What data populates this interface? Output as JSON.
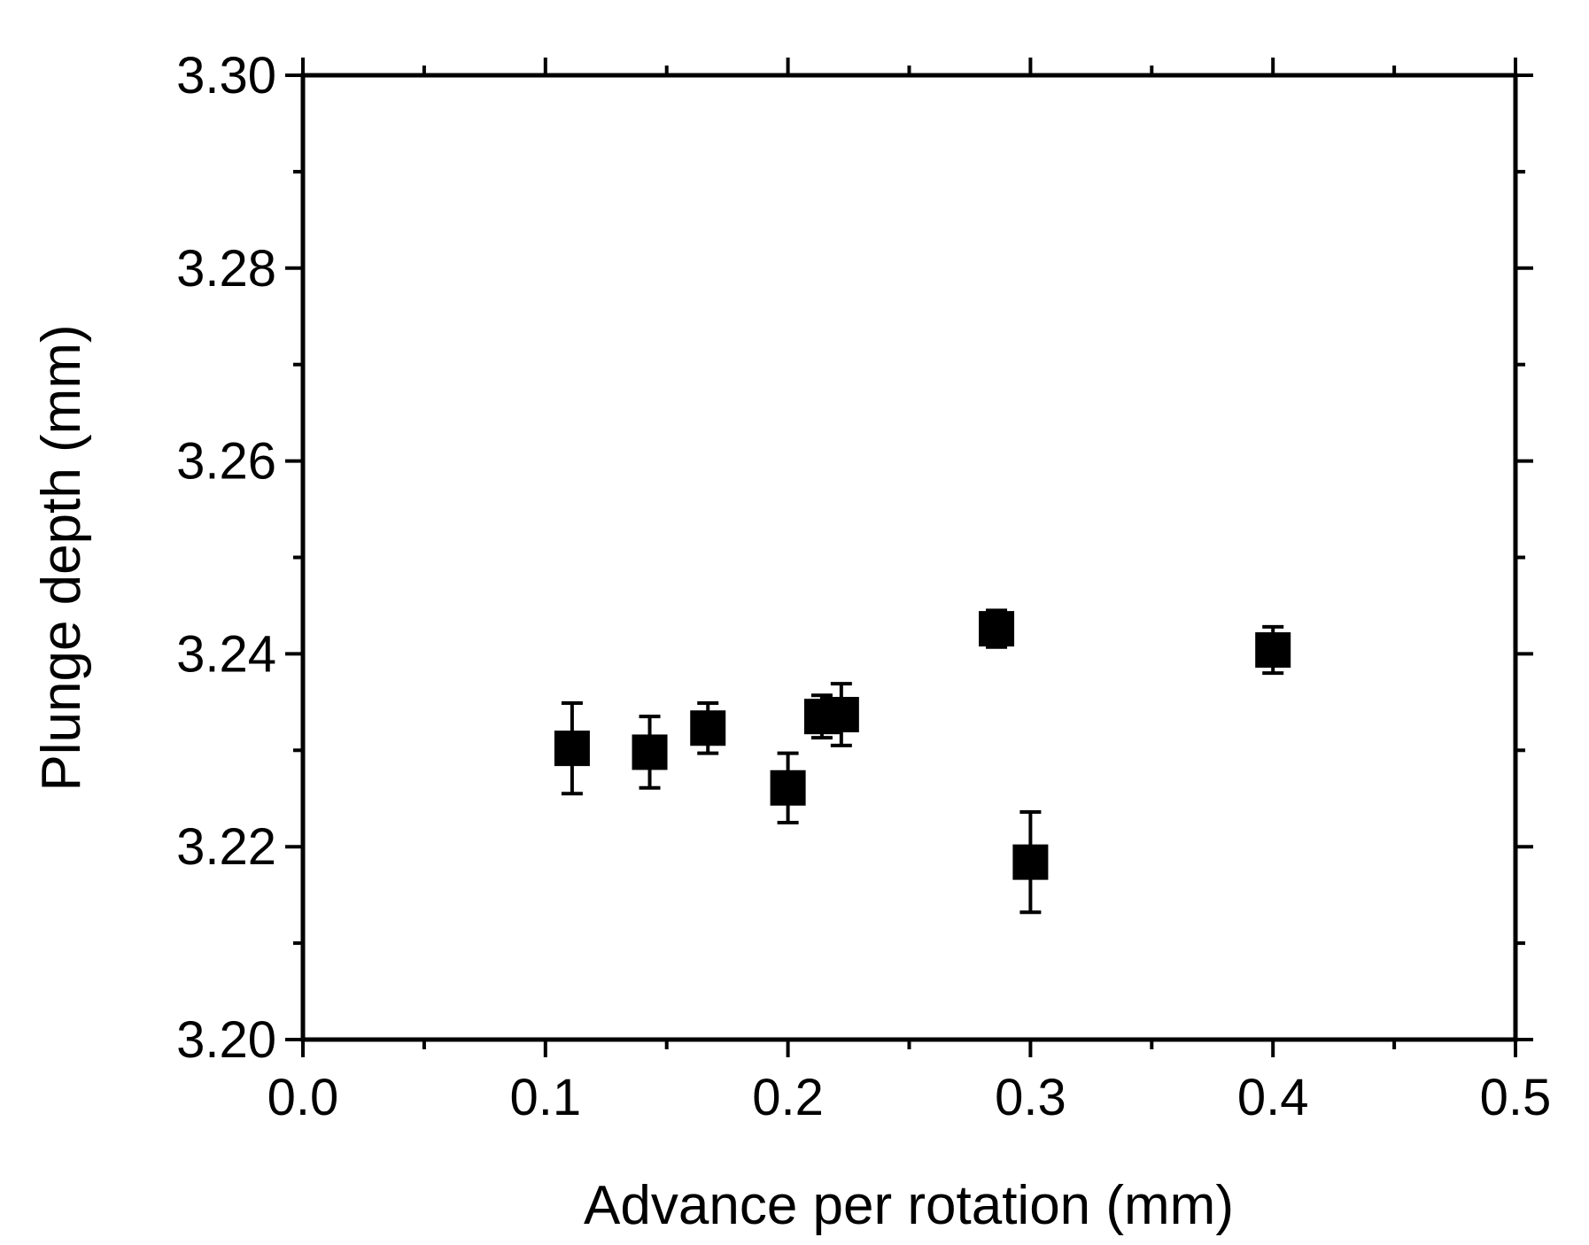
{
  "chart_data": {
    "type": "scatter",
    "title": "",
    "xlabel": "Advance per rotation (mm)",
    "ylabel": "Plunge depth (mm)",
    "xlim": [
      0.0,
      0.5
    ],
    "ylim": [
      3.2,
      3.3
    ],
    "x_major_ticks": [
      0.0,
      0.1,
      0.2,
      0.3,
      0.4,
      0.5
    ],
    "x_minor_ticks": [
      0.05,
      0.15,
      0.25,
      0.35,
      0.45
    ],
    "x_tick_labels": [
      "0.0",
      "0.1",
      "0.2",
      "0.3",
      "0.4",
      "0.5"
    ],
    "y_major_ticks": [
      3.2,
      3.22,
      3.24,
      3.26,
      3.28,
      3.3
    ],
    "y_minor_ticks": [
      3.21,
      3.23,
      3.25,
      3.27,
      3.29
    ],
    "y_tick_labels": [
      "3.20",
      "3.22",
      "3.24",
      "3.26",
      "3.28",
      "3.30"
    ],
    "grid": false,
    "marker": "square",
    "marker_color": "#000000",
    "series": [
      {
        "name": "Plunge depth",
        "points": [
          {
            "x": 0.111,
            "y": 3.2302,
            "err": 0.0047
          },
          {
            "x": 0.143,
            "y": 3.2298,
            "err": 0.0037
          },
          {
            "x": 0.167,
            "y": 3.2323,
            "err": 0.0026
          },
          {
            "x": 0.2,
            "y": 3.2261,
            "err": 0.0036
          },
          {
            "x": 0.214,
            "y": 3.2335,
            "err": 0.0022
          },
          {
            "x": 0.222,
            "y": 3.2337,
            "err": 0.0032
          },
          {
            "x": 0.286,
            "y": 3.2426,
            "err": 0.0019
          },
          {
            "x": 0.3,
            "y": 3.2184,
            "err": 0.0052
          },
          {
            "x": 0.4,
            "y": 3.2404,
            "err": 0.0024
          }
        ]
      }
    ]
  }
}
